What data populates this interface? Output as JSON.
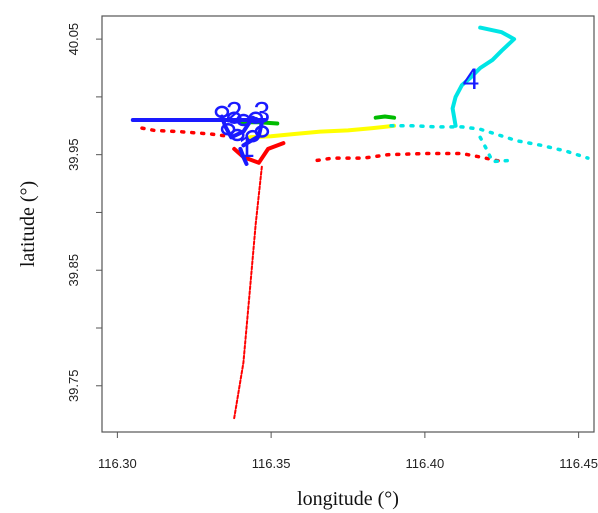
{
  "chart_data": {
    "type": "line",
    "title": "",
    "xlabel": "longitude (°)",
    "ylabel": "latitude (°)",
    "xlim": [
      116.295,
      116.455
    ],
    "ylim": [
      39.71,
      40.07
    ],
    "x_ticks": [
      116.3,
      116.35,
      116.4,
      116.45
    ],
    "x_tick_labels": [
      "116.30",
      "116.35",
      "116.40",
      "116.45"
    ],
    "y_ticks": [
      39.75,
      39.85,
      39.95,
      40.05
    ],
    "y_tick_labels": [
      "39.75",
      "39.85",
      "39.95",
      "40.05"
    ],
    "grid": false,
    "series": [
      {
        "color": "#ff0000",
        "style": "dashed",
        "values": [
          [
            116.338,
            39.722
          ],
          [
            116.341,
            39.77
          ],
          [
            116.343,
            39.83
          ],
          [
            116.345,
            39.89
          ],
          [
            116.347,
            39.94
          ]
        ]
      },
      {
        "color": "#ff0000",
        "style": "solid",
        "values": [
          [
            116.338,
            39.955
          ],
          [
            116.341,
            39.948
          ],
          [
            116.346,
            39.943
          ],
          [
            116.349,
            39.955
          ],
          [
            116.354,
            39.96
          ]
        ]
      },
      {
        "color": "#ff0000",
        "style": "dotted",
        "values": [
          [
            116.308,
            39.973
          ],
          [
            116.312,
            39.971
          ],
          [
            116.32,
            39.97
          ],
          [
            116.33,
            39.968
          ],
          [
            116.336,
            39.966
          ]
        ]
      },
      {
        "color": "#ff0000",
        "style": "dotted",
        "values": [
          [
            116.365,
            39.945
          ],
          [
            116.37,
            39.947
          ],
          [
            116.38,
            39.947
          ],
          [
            116.388,
            39.95
          ],
          [
            116.4,
            39.951
          ],
          [
            116.412,
            39.951
          ],
          [
            116.418,
            39.948
          ],
          [
            116.425,
            39.944
          ]
        ]
      },
      {
        "color": "#00bb00",
        "style": "solid",
        "values": [
          [
            116.34,
            39.978
          ],
          [
            116.346,
            39.978
          ],
          [
            116.352,
            39.977
          ]
        ]
      },
      {
        "color": "#00bb00",
        "style": "solid",
        "values": [
          [
            116.384,
            39.982
          ],
          [
            116.387,
            39.983
          ],
          [
            116.39,
            39.982
          ]
        ]
      },
      {
        "color": "#ffff00",
        "style": "solid",
        "values": [
          [
            116.343,
            39.965
          ],
          [
            116.35,
            39.966
          ],
          [
            116.358,
            39.968
          ],
          [
            116.366,
            39.97
          ],
          [
            116.375,
            39.971
          ],
          [
            116.383,
            39.973
          ],
          [
            116.39,
            39.975
          ]
        ]
      },
      {
        "color": "#00e5e5",
        "style": "solid",
        "values": [
          [
            116.41,
            39.975
          ],
          [
            116.409,
            39.99
          ],
          [
            116.41,
            40.0
          ],
          [
            116.412,
            40.01
          ],
          [
            116.415,
            40.017
          ],
          [
            116.418,
            40.025
          ],
          [
            116.422,
            40.032
          ],
          [
            116.425,
            40.04
          ],
          [
            116.429,
            40.05
          ],
          [
            116.425,
            40.056
          ],
          [
            116.418,
            40.06
          ]
        ]
      },
      {
        "color": "#00e5e5",
        "style": "dotted",
        "values": [
          [
            116.389,
            39.975
          ],
          [
            116.396,
            39.975
          ],
          [
            116.404,
            39.974
          ],
          [
            116.412,
            39.974
          ],
          [
            116.418,
            39.972
          ],
          [
            116.424,
            39.967
          ],
          [
            116.43,
            39.962
          ],
          [
            116.438,
            39.958
          ],
          [
            116.446,
            39.953
          ],
          [
            116.453,
            39.947
          ]
        ]
      },
      {
        "color": "#00e5e5",
        "style": "dotted",
        "values": [
          [
            116.418,
            39.965
          ],
          [
            116.42,
            39.955
          ],
          [
            116.422,
            39.944
          ],
          [
            116.428,
            39.945
          ]
        ]
      },
      {
        "color": "#1a1aff",
        "style": "solid",
        "values": [
          [
            116.305,
            39.98
          ],
          [
            116.32,
            39.98
          ],
          [
            116.333,
            39.98
          ],
          [
            116.34,
            39.98
          ],
          [
            116.348,
            39.98
          ]
        ]
      },
      {
        "color": "#1a1aff",
        "style": "solid",
        "values": [
          [
            116.334,
            39.983
          ],
          [
            116.335,
            39.975
          ],
          [
            116.337,
            39.965
          ],
          [
            116.341,
            39.97
          ],
          [
            116.344,
            39.982
          ],
          [
            116.347,
            39.978
          ],
          [
            116.346,
            39.966
          ],
          [
            116.341,
            39.958
          ]
        ]
      },
      {
        "color": "#1a1aff",
        "style": "solid",
        "values": [
          [
            116.34,
            39.955
          ],
          [
            116.341,
            39.948
          ],
          [
            116.342,
            39.942
          ]
        ]
      }
    ],
    "blue_loops": [
      [
        116.334,
        39.987
      ],
      [
        116.338,
        39.982
      ],
      [
        116.341,
        39.98
      ],
      [
        116.345,
        39.982
      ],
      [
        116.336,
        39.972
      ],
      [
        116.339,
        39.967
      ],
      [
        116.344,
        39.966
      ],
      [
        116.347,
        39.97
      ]
    ],
    "annotations": [
      {
        "text": "1",
        "x": 116.342,
        "y": 39.948,
        "color": "#1a1aff"
      },
      {
        "text": "2",
        "x": 116.338,
        "y": 39.978,
        "color": "#1a1aff"
      },
      {
        "text": "3",
        "x": 116.347,
        "y": 39.978,
        "color": "#1a1aff"
      },
      {
        "text": "4",
        "x": 116.415,
        "y": 40.007,
        "color": "#1a1aff"
      }
    ]
  }
}
